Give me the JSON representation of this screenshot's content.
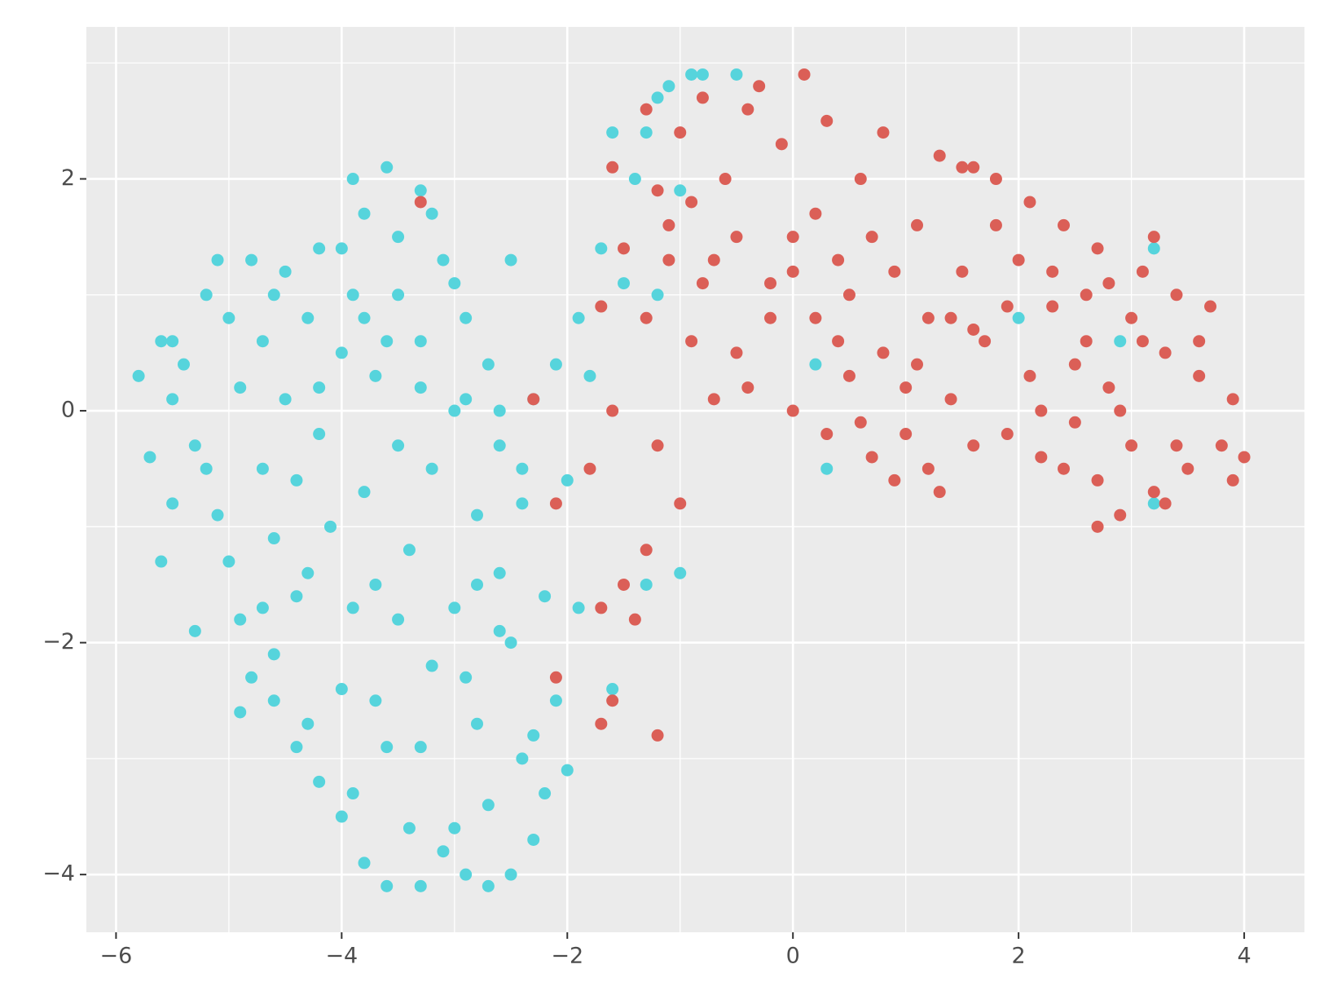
{
  "chart_data": {
    "type": "scatter",
    "xlim": [
      -6.263,
      4.534
    ],
    "ylim": [
      -4.498,
      3.311
    ],
    "xticks": [
      {
        "value": -6,
        "label": "−6"
      },
      {
        "value": -4,
        "label": "−4"
      },
      {
        "value": -2,
        "label": "−2"
      },
      0,
      2,
      4
    ],
    "yticks": [
      {
        "value": -4,
        "label": "−4"
      },
      {
        "value": -2,
        "label": "−2"
      },
      0,
      2
    ],
    "minor_xticks": [
      -5,
      -3,
      -1,
      1,
      3
    ],
    "minor_yticks": [
      -3,
      -1,
      1,
      3
    ],
    "grid": true,
    "series": [
      {
        "color": "#56d4dc",
        "x": [
          -5.8,
          -5.7,
          -5.6,
          -5.5,
          -5.5,
          -5.4,
          -5.3,
          -5.2,
          -5.1,
          -5.0,
          -5.0,
          -4.9,
          -4.9,
          -4.8,
          -4.8,
          -4.7,
          -4.7,
          -4.6,
          -4.6,
          -4.5,
          -4.5,
          -4.4,
          -4.4,
          -4.3,
          -4.3,
          -4.2,
          -4.2,
          -4.1,
          -4.0,
          -4.0,
          -3.9,
          -3.9,
          -3.8,
          -3.8,
          -3.7,
          -3.7,
          -3.6,
          -3.6,
          -3.5,
          -3.5,
          -3.4,
          -3.4,
          -3.3,
          -3.3,
          -3.2,
          -3.2,
          -3.1,
          -3.1,
          -3.0,
          -3.0,
          -2.9,
          -2.9,
          -2.8,
          -2.8,
          -2.7,
          -2.7,
          -2.6,
          -2.6,
          -2.5,
          -2.5,
          -2.4,
          -2.4,
          -2.3,
          -2.2,
          -2.2,
          -2.1,
          -2.1,
          -2.0,
          -2.0,
          -1.9,
          -1.9,
          -1.8,
          -1.7,
          -1.6,
          -1.6,
          -1.5,
          -1.4,
          -1.3,
          -1.3,
          -1.2,
          -1.1,
          -1.0,
          -0.9,
          -0.8,
          -0.5,
          -1.0,
          -1.2,
          0.2,
          0.3,
          2.0,
          2.9,
          3.2,
          3.2,
          -5.6,
          -5.3,
          -4.9,
          -4.6,
          -4.4,
          -4.2,
          -4.0,
          -3.8,
          -3.6,
          -3.3,
          -3.0,
          -2.7,
          -2.5,
          -2.3,
          -5.1,
          -4.6,
          -4.2,
          -3.9,
          -3.6,
          -3.3,
          -2.9,
          -2.6,
          -2.4,
          -2.8,
          -3.5,
          -3.9,
          -4.3,
          -4.7,
          -5.2,
          -5.5,
          -3.8,
          -3.5,
          -4.0,
          -3.2,
          -3.0,
          -3.7,
          -3.3,
          -2.9,
          -2.3,
          -2.6
        ],
        "values": [
          0.3,
          -0.4,
          0.6,
          0.1,
          -0.8,
          0.4,
          -0.3,
          1.0,
          -0.9,
          0.8,
          -1.3,
          0.2,
          -1.8,
          1.3,
          -2.3,
          0.6,
          -0.5,
          -1.1,
          -2.1,
          1.2,
          0.1,
          -0.6,
          -1.6,
          0.8,
          -2.7,
          1.4,
          -0.2,
          -1.0,
          -2.4,
          0.5,
          2.0,
          -3.3,
          1.7,
          -0.7,
          0.3,
          -1.5,
          2.1,
          -2.9,
          1.0,
          -0.3,
          -1.2,
          -3.6,
          1.9,
          0.6,
          -0.5,
          -2.2,
          1.3,
          -3.8,
          0.0,
          -1.7,
          -4.0,
          0.8,
          -0.9,
          -2.7,
          0.4,
          -3.4,
          -0.3,
          -1.4,
          1.3,
          -2.0,
          -0.8,
          -3.0,
          0.1,
          -1.6,
          -3.3,
          0.4,
          -2.5,
          -0.6,
          -3.1,
          0.8,
          -1.7,
          0.3,
          1.4,
          -2.4,
          2.4,
          1.1,
          2.0,
          2.4,
          -1.5,
          2.7,
          2.8,
          1.9,
          2.9,
          2.9,
          2.9,
          -1.4,
          1.0,
          0.4,
          -0.5,
          0.8,
          0.6,
          1.4,
          -0.8,
          -1.3,
          -1.9,
          -2.6,
          -2.5,
          -2.9,
          -3.2,
          -3.5,
          -3.9,
          -4.1,
          -4.1,
          -3.6,
          -4.1,
          -4.0,
          -3.7,
          1.3,
          1.0,
          0.2,
          1.0,
          0.6,
          0.2,
          0.1,
          0.0,
          -0.5,
          -1.5,
          -1.8,
          -1.7,
          -1.4,
          -1.7,
          -0.5,
          0.6,
          0.8,
          1.5,
          1.4,
          1.7,
          1.1,
          -2.5,
          -2.9,
          -2.3,
          -2.8,
          -1.9
        ]
      },
      {
        "color": "#db5f57",
        "x": [
          -1.7,
          -1.6,
          -1.5,
          -1.3,
          -1.2,
          -1.1,
          -1.0,
          -0.9,
          -0.8,
          -0.8,
          -0.7,
          -0.6,
          -0.5,
          -0.4,
          -0.3,
          -0.2,
          -0.1,
          0.0,
          0.0,
          0.1,
          0.2,
          0.3,
          0.4,
          0.5,
          0.6,
          0.6,
          0.7,
          0.8,
          0.9,
          0.9,
          1.0,
          1.1,
          1.2,
          1.2,
          1.3,
          1.4,
          1.5,
          1.6,
          1.6,
          1.7,
          1.8,
          1.9,
          2.0,
          2.1,
          2.1,
          2.2,
          2.3,
          2.4,
          2.5,
          2.5,
          2.6,
          2.7,
          2.7,
          2.8,
          2.9,
          3.0,
          3.0,
          3.1,
          3.2,
          3.3,
          3.4,
          3.5,
          3.6,
          3.7,
          3.8,
          3.9,
          4.0,
          3.9,
          2.7,
          -1.8,
          -1.7,
          -1.6,
          -1.5,
          -1.4,
          -1.3,
          -1.2,
          -1.2,
          -1.0,
          -2.1,
          -2.3,
          -1.6,
          -1.3,
          -3.3,
          -2.1,
          -1.7,
          0.3,
          1.0,
          1.4,
          0.5,
          -0.2,
          0.8,
          1.8,
          2.3,
          3.1,
          3.4,
          2.9,
          2.2,
          1.6,
          0.4,
          -0.5,
          -0.9,
          -0.4,
          0.2,
          1.1,
          1.9,
          2.6,
          3.3,
          3.6,
          2.4,
          1.3,
          0.7,
          0.0,
          -0.7,
          -1.1,
          1.5,
          3.2,
          2.8
        ],
        "values": [
          0.9,
          2.1,
          1.4,
          2.6,
          1.9,
          1.3,
          2.4,
          0.6,
          2.7,
          1.1,
          0.1,
          2.0,
          1.5,
          0.2,
          2.8,
          1.1,
          2.3,
          1.5,
          0.0,
          2.9,
          0.8,
          2.5,
          1.3,
          0.3,
          2.0,
          -0.1,
          1.5,
          0.5,
          1.2,
          -0.6,
          0.2,
          1.6,
          0.8,
          -0.5,
          2.2,
          0.1,
          1.2,
          -0.3,
          2.1,
          0.6,
          1.6,
          -0.2,
          1.3,
          0.3,
          1.8,
          -0.4,
          0.9,
          1.6,
          -0.1,
          0.4,
          1.0,
          -0.6,
          1.4,
          0.2,
          -0.9,
          0.8,
          -0.3,
          1.2,
          -0.7,
          0.5,
          1.0,
          -0.5,
          0.3,
          0.9,
          -0.3,
          0.1,
          -0.4,
          -0.6,
          -1.0,
          -0.5,
          -1.7,
          -2.5,
          -1.5,
          -1.8,
          -1.2,
          -2.8,
          -0.3,
          -0.8,
          -0.8,
          0.1,
          0.0,
          0.8,
          1.8,
          -2.3,
          -2.7,
          -0.2,
          -0.2,
          0.8,
          1.0,
          0.8,
          2.4,
          2.0,
          1.2,
          0.6,
          -0.3,
          0.0,
          0.0,
          0.7,
          0.6,
          0.5,
          1.8,
          2.6,
          1.7,
          0.4,
          0.9,
          0.6,
          -0.8,
          0.6,
          -0.5,
          -0.7,
          -0.4,
          1.2,
          1.3,
          1.6,
          2.1,
          1.5,
          1.1
        ]
      }
    ]
  }
}
